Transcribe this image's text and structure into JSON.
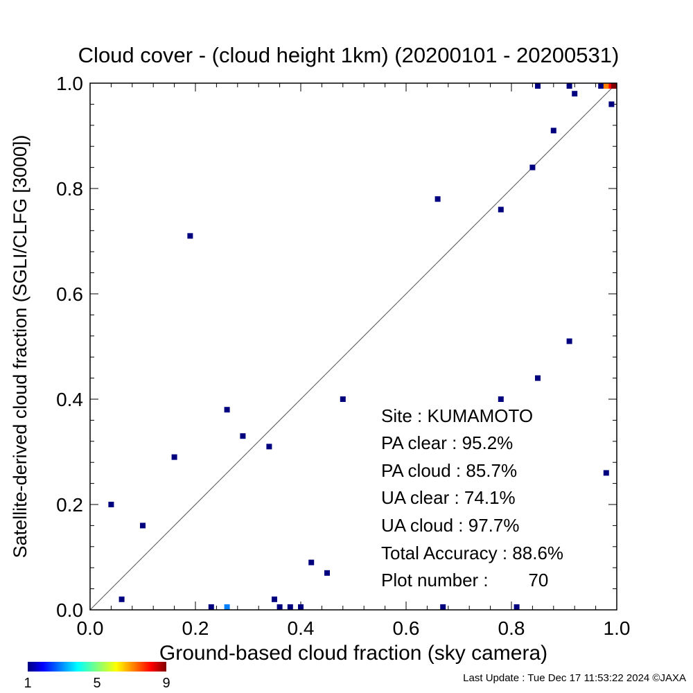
{
  "chart_data": {
    "type": "scatter",
    "title": "Cloud cover - (cloud height 1km)  (20200101 - 20200531)",
    "xlabel": "Ground-based cloud fraction (sky camera)",
    "ylabel": "Satellite-derived cloud fraction (SGLI/CLFG [3000])",
    "xlim": [
      0.0,
      1.0
    ],
    "ylim": [
      0.0,
      1.0
    ],
    "x_ticks": [
      "0.0",
      "0.2",
      "0.4",
      "0.6",
      "0.8",
      "1.0"
    ],
    "y_ticks": [
      "0.0",
      "0.2",
      "0.4",
      "0.6",
      "0.8",
      "1.0"
    ],
    "reference_line": "y = x",
    "grid": false,
    "colorbar": {
      "min": 1,
      "max": 9,
      "ticks": [
        "1",
        "5",
        "9"
      ]
    },
    "points": [
      {
        "x": 0.04,
        "y": 0.2,
        "count": 1
      },
      {
        "x": 0.06,
        "y": 0.02,
        "count": 1
      },
      {
        "x": 0.1,
        "y": 0.16,
        "count": 1
      },
      {
        "x": 0.16,
        "y": 0.29,
        "count": 1
      },
      {
        "x": 0.19,
        "y": 0.71,
        "count": 1
      },
      {
        "x": 0.23,
        "y": 0.0,
        "count": 1
      },
      {
        "x": 0.26,
        "y": 0.0,
        "count": 3
      },
      {
        "x": 0.26,
        "y": 0.38,
        "count": 1
      },
      {
        "x": 0.29,
        "y": 0.33,
        "count": 1
      },
      {
        "x": 0.34,
        "y": 0.31,
        "count": 1
      },
      {
        "x": 0.35,
        "y": 0.02,
        "count": 1
      },
      {
        "x": 0.36,
        "y": 0.0,
        "count": 1
      },
      {
        "x": 0.38,
        "y": 0.0,
        "count": 1
      },
      {
        "x": 0.4,
        "y": 0.0,
        "count": 1
      },
      {
        "x": 0.42,
        "y": 0.09,
        "count": 1
      },
      {
        "x": 0.45,
        "y": 0.07,
        "count": 1
      },
      {
        "x": 0.48,
        "y": 0.4,
        "count": 1
      },
      {
        "x": 0.66,
        "y": 0.78,
        "count": 1
      },
      {
        "x": 0.67,
        "y": 0.0,
        "count": 1
      },
      {
        "x": 0.78,
        "y": 0.76,
        "count": 1
      },
      {
        "x": 0.78,
        "y": 0.4,
        "count": 1
      },
      {
        "x": 0.81,
        "y": 0.0,
        "count": 1
      },
      {
        "x": 0.84,
        "y": 0.84,
        "count": 1
      },
      {
        "x": 0.85,
        "y": 1.0,
        "count": 1
      },
      {
        "x": 0.85,
        "y": 0.44,
        "count": 1
      },
      {
        "x": 0.88,
        "y": 0.91,
        "count": 1
      },
      {
        "x": 0.91,
        "y": 1.0,
        "count": 1
      },
      {
        "x": 0.91,
        "y": 0.51,
        "count": 1
      },
      {
        "x": 0.92,
        "y": 0.98,
        "count": 1
      },
      {
        "x": 0.97,
        "y": 1.0,
        "count": 1
      },
      {
        "x": 0.98,
        "y": 1.0,
        "count": 7
      },
      {
        "x": 0.98,
        "y": 0.26,
        "count": 1
      },
      {
        "x": 0.99,
        "y": 0.96,
        "count": 1
      },
      {
        "x": 0.99,
        "y": 1.0,
        "count": 8
      },
      {
        "x": 1.0,
        "y": 1.0,
        "count": 9
      }
    ]
  },
  "stats": {
    "site": "Site : KUMAMOTO",
    "pa_clear": "PA clear :  95.2%",
    "pa_cloud": "PA cloud :  85.7%",
    "ua_clear": "UA clear :  74.1%",
    "ua_cloud": "UA cloud :  97.7%",
    "total_accuracy": "Total Accuracy :  88.6%",
    "plot_number": "Plot number :        70"
  },
  "footer": {
    "last_update": "Last Update : Tue Dec 17 11:53:22 2024  ©JAXA"
  },
  "colors": {
    "colormap": [
      "#00007f",
      "#0000ff",
      "#007fff",
      "#00ffff",
      "#7fff7f",
      "#ffff00",
      "#ff7f00",
      "#ff0000",
      "#7f0000"
    ],
    "reference_line": "#555555"
  }
}
